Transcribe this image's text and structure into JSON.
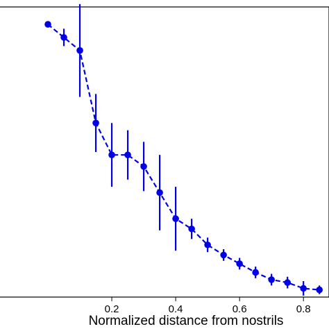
{
  "chart_data": {
    "type": "line",
    "title": "",
    "xlabel": "Normalized distance from nostrils",
    "ylabel": "",
    "xlim": [
      -0.15,
      0.88
    ],
    "ylim": [
      0,
      1
    ],
    "x_ticks": [
      0.2,
      0.4,
      0.6,
      0.8
    ],
    "x_tick_labels": [
      "0.2",
      "0.4",
      "0.6",
      "0.8"
    ],
    "grid": false,
    "legend": "none",
    "series": [
      {
        "color": "#0000e6",
        "line_style": "dashed",
        "marker": "circle",
        "x": [
          0.0,
          0.05,
          0.1,
          0.15,
          0.2,
          0.25,
          0.3,
          0.35,
          0.4,
          0.45,
          0.5,
          0.55,
          0.6,
          0.65,
          0.7,
          0.75,
          0.8,
          0.85
        ],
        "y": [
          0.94,
          0.895,
          0.85,
          0.6,
          0.49,
          0.49,
          0.45,
          0.36,
          0.27,
          0.235,
          0.18,
          0.145,
          0.115,
          0.085,
          0.06,
          0.05,
          0.03,
          0.025
        ],
        "err": [
          0.0,
          0.03,
          0.16,
          0.1,
          0.11,
          0.085,
          0.085,
          0.13,
          0.11,
          0.035,
          0.025,
          0.02,
          0.02,
          0.02,
          0.02,
          0.02,
          0.025,
          0.015
        ]
      }
    ]
  }
}
